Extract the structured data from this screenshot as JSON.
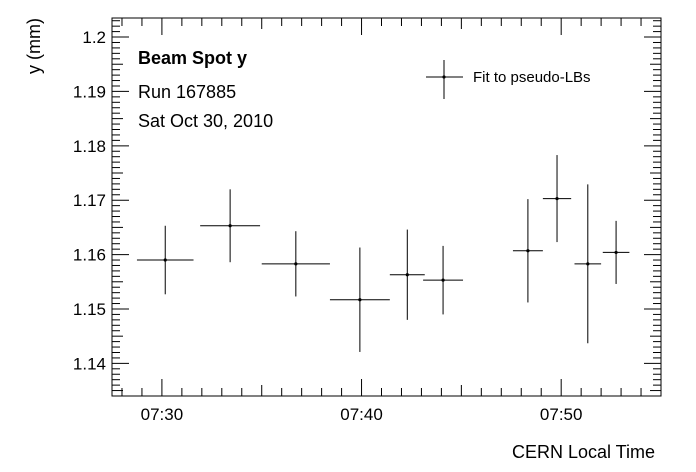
{
  "chart_data": {
    "type": "scatter",
    "title": "",
    "xlabel": "CERN Local Time",
    "ylabel": "y (mm)",
    "xlim": [
      "07:27:30",
      "07:55:00"
    ],
    "ylim": [
      1.134,
      1.2035
    ],
    "xticks": [
      {
        "time": "07:30:00",
        "label": "07:30"
      },
      {
        "time": "07:40:00",
        "label": "07:40"
      },
      {
        "time": "07:50:00",
        "label": "07:50"
      }
    ],
    "yticks": [
      {
        "value": 1.14,
        "label": "1.14"
      },
      {
        "value": 1.15,
        "label": "1.15"
      },
      {
        "value": 1.16,
        "label": "1.16"
      },
      {
        "value": 1.17,
        "label": "1.17"
      },
      {
        "value": 1.18,
        "label": "1.18"
      },
      {
        "value": 1.19,
        "label": "1.19"
      },
      {
        "value": 1.2,
        "label": "1.2"
      }
    ],
    "annotations": [
      "Beam Spot y",
      "Run 167885",
      "Sat Oct 30, 2010"
    ],
    "legend": {
      "position": "top-right",
      "entries": [
        "Fit to pseudo-LBs"
      ]
    },
    "grid": false,
    "series": [
      {
        "name": "Fit to pseudo-LBs",
        "marker": "point-with-error-bars",
        "points": [
          {
            "t_start": "07:28:45",
            "t_end": "07:31:35",
            "y": 1.159,
            "y_err": 0.0063
          },
          {
            "t_start": "07:31:55",
            "t_end": "07:34:55",
            "y": 1.1653,
            "y_err": 0.0067
          },
          {
            "t_start": "07:35:00",
            "t_end": "07:38:25",
            "y": 1.1583,
            "y_err": 0.006
          },
          {
            "t_start": "07:38:25",
            "t_end": "07:41:25",
            "y": 1.1517,
            "y_err": 0.0096
          },
          {
            "t_start": "07:41:25",
            "t_end": "07:43:10",
            "y": 1.1563,
            "y_err": 0.0083
          },
          {
            "t_start": "07:43:05",
            "t_end": "07:45:05",
            "y": 1.1553,
            "y_err": 0.0063
          },
          {
            "t_start": "07:47:35",
            "t_end": "07:49:05",
            "y": 1.1607,
            "y_err": 0.0095
          },
          {
            "t_start": "07:49:05",
            "t_end": "07:50:30",
            "y": 1.1703,
            "y_err": 0.008
          },
          {
            "t_start": "07:50:40",
            "t_end": "07:52:00",
            "y": 1.1583,
            "y_err": 0.0146
          },
          {
            "t_start": "07:52:05",
            "t_end": "07:53:25",
            "y": 1.1604,
            "y_err": 0.0058
          }
        ]
      }
    ]
  },
  "colors": {
    "axis": "#000000",
    "marker": "#000000",
    "background": "#ffffff"
  }
}
